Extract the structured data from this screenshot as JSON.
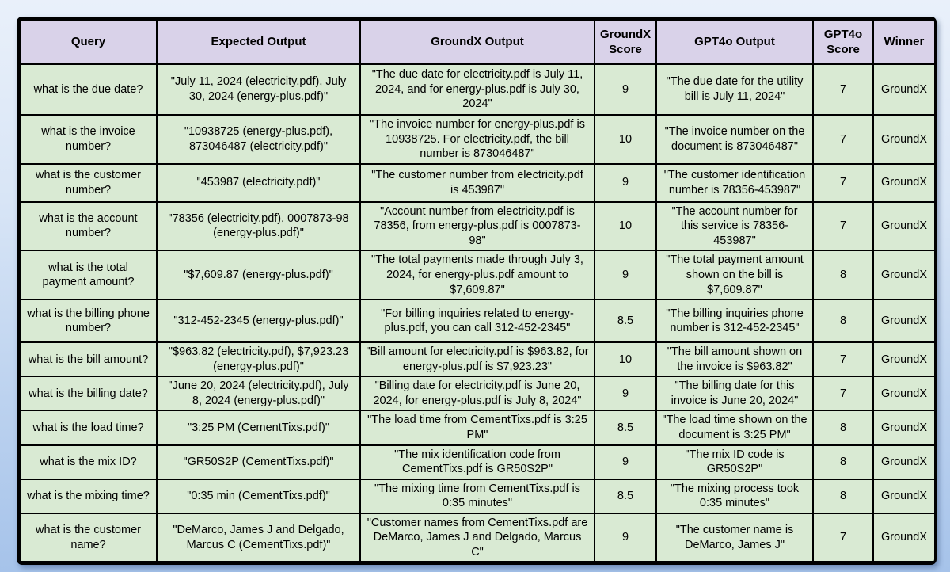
{
  "colors": {
    "header_bg": "#d9d2e9",
    "row_bg": "#d9ead3",
    "border": "#000000",
    "page_bg_top": "#e9f0fa",
    "page_bg_bottom": "#a6c3ea"
  },
  "chart_data": {
    "type": "table",
    "columns": [
      "Query",
      "Expected Output",
      "GroundX Output",
      "GroundX Score",
      "GPT4o Output",
      "GPT4o Score",
      "Winner"
    ],
    "rows": [
      [
        "what is the due date?",
        "\"July 11, 2024 (electricity.pdf), July 30, 2024 (energy-plus.pdf)\"",
        "\"The due date for electricity.pdf is July 11, 2024, and for energy-plus.pdf is July 30, 2024\"",
        "9",
        "\"The due date for the utility bill is July 11, 2024\"",
        "7",
        "GroundX"
      ],
      [
        "what is the invoice number?",
        "\"10938725 (energy-plus.pdf), 873046487 (electricity.pdf)\"",
        "\"The invoice number for energy-plus.pdf is 10938725. For electricity.pdf, the bill number is 873046487\"",
        "10",
        "\"The invoice number on the document is 873046487\"",
        "7",
        "GroundX"
      ],
      [
        "what is the customer number?",
        "\"453987 (electricity.pdf)\"",
        "\"The customer number from electricity.pdf is 453987\"",
        "9",
        "\"The customer identification number is 78356-453987\"",
        "7",
        "GroundX"
      ],
      [
        "what is the account number?",
        "\"78356 (electricity.pdf), 0007873-98 (energy-plus.pdf)\"",
        "\"Account number from electricity.pdf is 78356, from energy-plus.pdf is 0007873-98\"",
        "10",
        "\"The account number for this service is 78356-453987\"",
        "7",
        "GroundX"
      ],
      [
        "what is the total payment amount?",
        "\"$7,609.87 (energy-plus.pdf)\"",
        "\"The total payments made through July 3, 2024, for energy-plus.pdf amount to $7,609.87\"",
        "9",
        "\"The total payment amount shown on the bill is $7,609.87\"",
        "8",
        "GroundX"
      ],
      [
        "what is the billing phone number?",
        "\"312-452-2345 (energy-plus.pdf)\"",
        "\"For billing inquiries related to energy-plus.pdf, you can call 312-452-2345\"",
        "8.5",
        "\"The billing inquiries phone number is 312-452-2345\"",
        "8",
        "GroundX"
      ],
      [
        "what is the bill amount?",
        "\"$963.82 (electricity.pdf), $7,923.23 (energy-plus.pdf)\"",
        "\"Bill amount for electricity.pdf is $963.82, for energy-plus.pdf is $7,923.23\"",
        "10",
        "\"The bill amount shown on the invoice is $963.82\"",
        "7",
        "GroundX"
      ],
      [
        "what is the billing date?",
        "\"June 20, 2024 (electricity.pdf), July 8, 2024 (energy-plus.pdf)\"",
        "\"Billing date for electricity.pdf is June 20, 2024, for energy-plus.pdf is July 8, 2024\"",
        "9",
        "\"The billing date for this invoice is June 20, 2024\"",
        "7",
        "GroundX"
      ],
      [
        "what is the load time?",
        "\"3:25 PM (CementTixs.pdf)\"",
        "\"The load time from CementTixs.pdf is 3:25 PM\"",
        "8.5",
        "\"The load time shown on the document is 3:25 PM\"",
        "8",
        "GroundX"
      ],
      [
        "what is the mix ID?",
        "\"GR50S2P (CementTixs.pdf)\"",
        "\"The mix identification code from CementTixs.pdf is GR50S2P\"",
        "9",
        "\"The mix ID code is GR50S2P\"",
        "8",
        "GroundX"
      ],
      [
        "what is the mixing time?",
        "\"0:35 min (CementTixs.pdf)\"",
        "\"The mixing time from CementTixs.pdf is 0:35 minutes\"",
        "8.5",
        "\"The mixing process took 0:35 minutes\"",
        "8",
        "GroundX"
      ],
      [
        "what is the customer name?",
        "\"DeMarco, James J and Delgado, Marcus C (CementTixs.pdf)\"",
        "\"Customer names from CementTixs.pdf are DeMarco, James J and Delgado, Marcus C\"",
        "9",
        "\"The customer name is DeMarco, James J\"",
        "7",
        "GroundX"
      ]
    ]
  }
}
